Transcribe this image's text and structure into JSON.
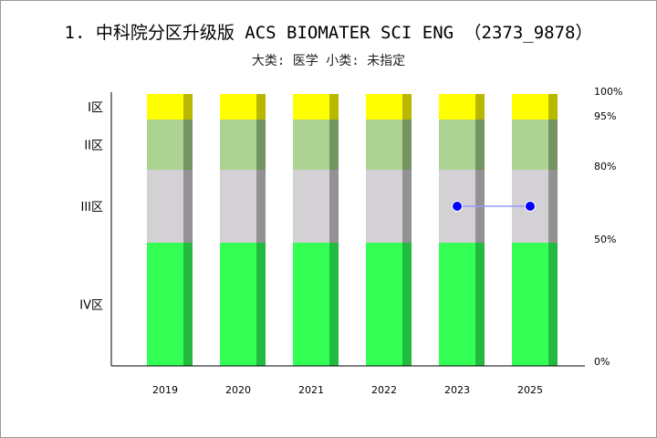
{
  "chart_data": {
    "type": "bar",
    "title": "1. 中科院分区升级版 ACS BIOMATER SCI ENG （2373_9878）",
    "subtitle": "大类: 医学 小类: 未指定",
    "categories": [
      "2019",
      "2020",
      "2021",
      "2022",
      "2023",
      "2025"
    ],
    "bands": [
      {
        "name": "IV区",
        "from": 0,
        "to": 50,
        "color": "#33ff55",
        "shade": "#22bb3f"
      },
      {
        "name": "III区",
        "from": 50,
        "to": 80,
        "color": "#d3d1d3",
        "shade": "#939193"
      },
      {
        "name": "II区",
        "from": 80,
        "to": 95,
        "color": "#add393",
        "shade": "#749462"
      },
      {
        "name": "I区",
        "from": 95,
        "to": 100,
        "color": "#ffff00",
        "shade": "#b8b800"
      }
    ],
    "right_ticks": [
      "0%",
      "50%",
      "80%",
      "95%",
      "100%"
    ],
    "series": [
      {
        "x": [
          "2023",
          "2025"
        ],
        "values": [
          65,
          65
        ],
        "color": "#0000ff",
        "line_color": "#9999ff"
      }
    ],
    "ylim": [
      0,
      100
    ]
  }
}
